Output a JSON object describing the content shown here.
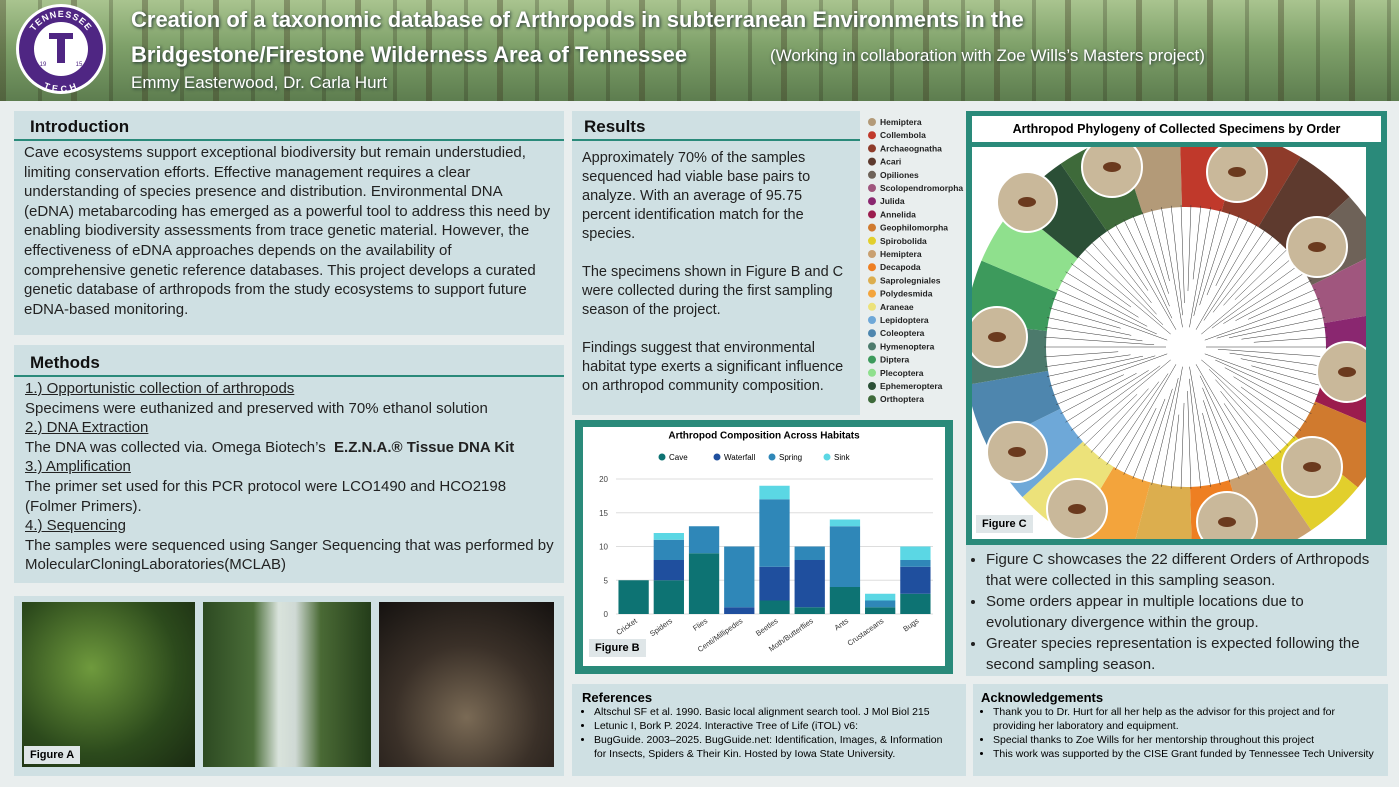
{
  "header": {
    "title_line1": "Creation of a taxonomic database of Arthropods in subterranean Environments in the",
    "title_line2": "Bridgestone/Firestone Wilderness Area of Tennessee",
    "subtitle": "(Working in collaboration with Zoe Wills’s Masters project)",
    "authors": "Emmy Easterwood, Dr. Carla Hurt",
    "logo": {
      "top": "TENNESSEE",
      "bottom": "TECH",
      "left": "19",
      "right": "15"
    }
  },
  "introduction": {
    "heading": "Introduction",
    "text": "Cave ecosystems support exceptional biodiversity but remain understudied, limiting conservation efforts. Effective management requires a clear understanding of species presence and distribution. Environmental DNA (eDNA) metabarcoding has emerged as a powerful tool to address this need by enabling biodiversity assessments from trace genetic material. However, the effectiveness of eDNA approaches depends on the availability of comprehensive genetic reference databases. This project develops a curated genetic database of arthropods from the study ecosystems to support future eDNA-based monitoring."
  },
  "methods": {
    "heading": "Methods",
    "steps": [
      {
        "title": "1.) Opportunistic collection of arthropods",
        "text": "Specimens were euthanized and preserved with 70% ethanol solution"
      },
      {
        "title": "2.) DNA Extraction",
        "text": "The DNA was collected via. Omega Biotech’s",
        "bold": "E.Z.N.A.® Tissue DNA Kit"
      },
      {
        "title": "3.) Amplification",
        "text": "The primer set used for this PCR protocol were LCO1490 and HCO2198 (Folmer Primers)."
      },
      {
        "title": "4.) Sequencing",
        "text": "The samples were sequenced using Sanger Sequencing that was performed by MolecularCloningLaboratories(MCLAB)"
      }
    ]
  },
  "figure_a": {
    "label": "Figure A"
  },
  "results": {
    "heading": "Results",
    "paragraphs": [
      "Approximately 70% of the samples sequenced had viable base pairs to analyze. With an average of 95.75 percent identification match for the species.",
      "The specimens shown in Figure B and C were collected during the first sampling season of the project.",
      "Findings suggest that environmental habitat type exerts a significant influence on arthropod community composition."
    ]
  },
  "order_legend": [
    {
      "name": "Hemiptera",
      "color": "#b39a78"
    },
    {
      "name": "Collembola",
      "color": "#c0392b"
    },
    {
      "name": "Archaeognatha",
      "color": "#8e3b2a"
    },
    {
      "name": "Acari",
      "color": "#5e3a2e"
    },
    {
      "name": "Opiliones",
      "color": "#6e6258"
    },
    {
      "name": "Scolopendromorpha",
      "color": "#a0567e"
    },
    {
      "name": "Julida",
      "color": "#8a2770"
    },
    {
      "name": "Annelida",
      "color": "#9b1c4e"
    },
    {
      "name": "Geophilomorpha",
      "color": "#d07a2e"
    },
    {
      "name": "Spirobolida",
      "color": "#e2cf2c"
    },
    {
      "name": "Hemiptera",
      "color": "#c9a070"
    },
    {
      "name": "Decapoda",
      "color": "#ee7f22"
    },
    {
      "name": "Saprolegniales",
      "color": "#dcae4e"
    },
    {
      "name": "Polydesmida",
      "color": "#f3a43c"
    },
    {
      "name": "Araneae",
      "color": "#ece27a"
    },
    {
      "name": "Lepidoptera",
      "color": "#6ea8d8"
    },
    {
      "name": "Coleoptera",
      "color": "#4e86ae"
    },
    {
      "name": "Hymenoptera",
      "color": "#4c7a6c"
    },
    {
      "name": "Diptera",
      "color": "#3d9a5c"
    },
    {
      "name": "Plecoptera",
      "color": "#8fe08d"
    },
    {
      "name": "Ephemeroptera",
      "color": "#2b4f36"
    },
    {
      "name": "Orthoptera",
      "color": "#3e6a3a"
    }
  ],
  "chart_data": {
    "type": "bar",
    "stacked": true,
    "title": "Arthropod Composition Across Habitats",
    "categories": [
      "Cricket",
      "Spiders",
      "Flies",
      "Centi/Millipedes",
      "Beetles",
      "Moth/Butterflies",
      "Ants",
      "Crustaceans",
      "Bugs"
    ],
    "series": [
      {
        "name": "Cave",
        "color": "#0d7373",
        "values": [
          5,
          5,
          9,
          0,
          2,
          1,
          4,
          1,
          3
        ]
      },
      {
        "name": "Waterfall",
        "color": "#1f4f9e",
        "values": [
          0,
          3,
          0,
          1,
          5,
          7,
          0,
          0,
          4
        ]
      },
      {
        "name": "Spring",
        "color": "#2f87b8",
        "values": [
          0,
          3,
          4,
          9,
          10,
          2,
          9,
          1,
          1
        ]
      },
      {
        "name": "Sink",
        "color": "#5bd7e4",
        "values": [
          0,
          1,
          0,
          0,
          2,
          0,
          1,
          1,
          2
        ]
      }
    ],
    "ylim": [
      0,
      20
    ],
    "yticks": [
      0,
      5,
      10,
      15,
      20
    ],
    "grid": true,
    "legend": "top"
  },
  "figure_b": {
    "label": "Figure B"
  },
  "figure_c": {
    "title": "Arthropod Phylogeny of Collected Specimens by Order",
    "label": "Figure C",
    "bullets": [
      "Figure C showcases the 22 different Orders of Arthropods that were collected in this sampling season.",
      "Some orders appear in multiple locations due to evolutionary divergence within the group.",
      "Greater species representation is expected following the second sampling season."
    ]
  },
  "references": {
    "heading": "References",
    "items": [
      "Altschul SF et al. 1990. Basic local alignment search tool. J Mol Biol 215",
      "Letunic I, Bork P. 2024. Interactive Tree of Life (iTOL) v6:",
      "BugGuide. 2003–2025. BugGuide.net: Identification, Images, & Information for Insects, Spiders & Their Kin. Hosted by Iowa State University."
    ]
  },
  "acknowledgements": {
    "heading": "Acknowledgements",
    "items": [
      "Thank you to Dr. Hurt for all her help as the advisor for this project and for providing her laboratory and equipment.",
      "Special thanks to Zoe Wills for her mentorship throughout this project",
      "This work was supported by the CISE Grant funded by Tennessee Tech University"
    ]
  }
}
